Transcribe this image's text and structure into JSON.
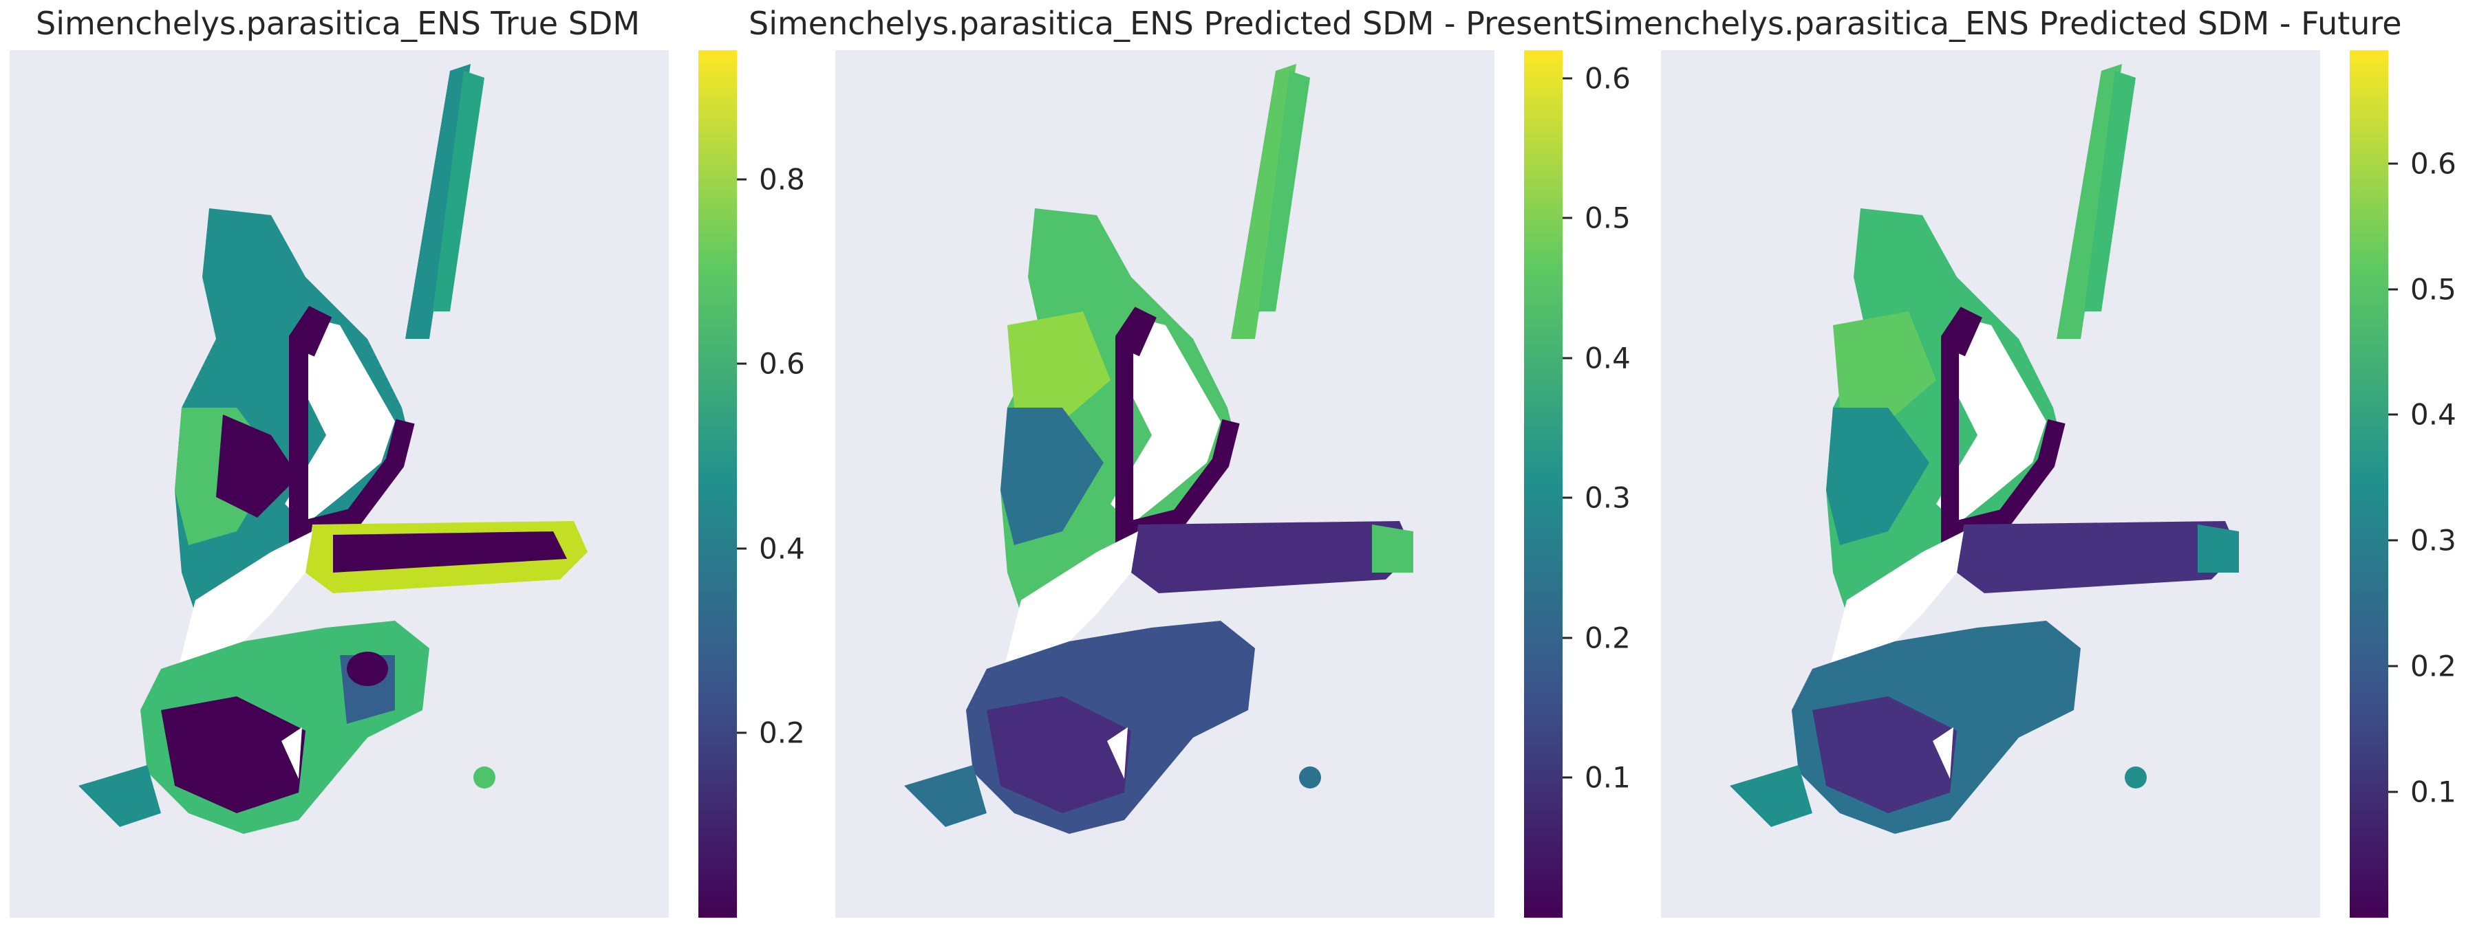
{
  "figure": {
    "panels": [
      {
        "title": "Simenchelys.parasitica_ENS True SDM",
        "colorbar": {
          "range": [
            0.0,
            0.94
          ],
          "ticks": [
            0.2,
            0.4,
            0.6,
            0.8
          ],
          "tick_labels": [
            "0.2",
            "0.4",
            "0.6",
            "0.8"
          ]
        },
        "palette": {
          "land": "#ffffff",
          "deep": "#440154",
          "mid": "#21908d",
          "high": "#5ec962",
          "peak": "#c2df23"
        }
      },
      {
        "title": "Simenchelys.parasitica_ENS Predicted SDM - Present",
        "colorbar": {
          "range": [
            0.0,
            0.62
          ],
          "ticks": [
            0.1,
            0.2,
            0.3,
            0.4,
            0.5,
            0.6
          ],
          "tick_labels": [
            "0.1",
            "0.2",
            "0.3",
            "0.4",
            "0.5",
            "0.6"
          ]
        },
        "palette": {
          "land": "#ffffff",
          "deep": "#440154",
          "mid": "#2c728e",
          "high": "#5ec962",
          "peak": "#fde725"
        }
      },
      {
        "title": "Simenchelys.parasitica_ENS Predicted SDM - Future",
        "colorbar": {
          "range": [
            0.0,
            0.69
          ],
          "ticks": [
            0.1,
            0.2,
            0.3,
            0.4,
            0.5,
            0.6
          ],
          "tick_labels": [
            "0.1",
            "0.2",
            "0.3",
            "0.4",
            "0.5",
            "0.6"
          ]
        },
        "palette": {
          "land": "#ffffff",
          "deep": "#440154",
          "mid": "#2c728e",
          "high": "#5ec962",
          "peak": "#fde725"
        }
      }
    ],
    "colormap": "viridis",
    "background_color": "#eaeaf2"
  }
}
